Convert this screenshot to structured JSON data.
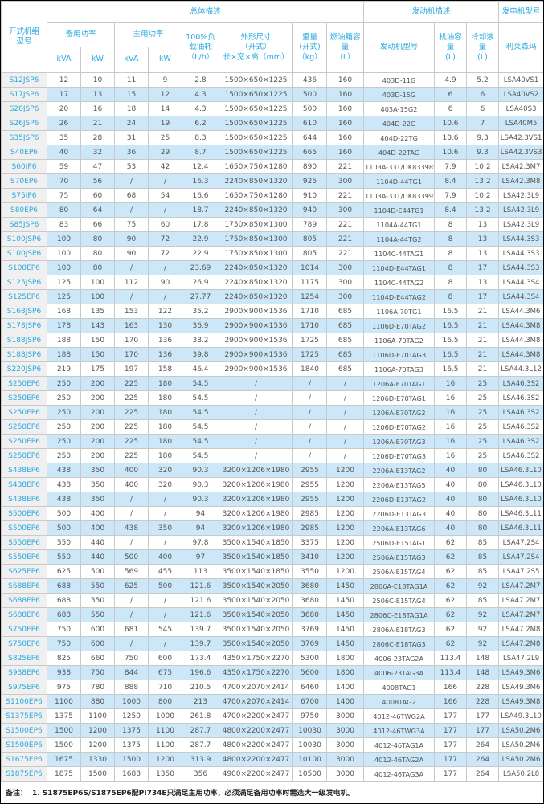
{
  "colors": {
    "accent_cyan": "#29a9e0",
    "stripe_blue": "#cce8f8",
    "model_column_gray": "#f0f0f0",
    "border_gray": "#c9c9c9"
  },
  "footnote": {
    "label": "备注：",
    "text": "1. S1875EP6S/S1875EP6配PI734E只满足主用功率，必须满足备用功率时需选大一级发电机。"
  },
  "table": {
    "header": {
      "model_col": "开式机组\n型号",
      "overall_group": "总体描述",
      "engine_group": "发动机描述",
      "generator_group": "发电机型号",
      "standby_power": "备用功率",
      "prime_power": "主用功率",
      "standby_kva": "kVA",
      "standby_kw": "kW",
      "prime_kva": "kVA",
      "prime_kw": "kW",
      "fuel_100": "100%负\n载油耗\n（L/h）",
      "dimensions": "外形尺寸\n（开式）\n长×宽×高（mm）",
      "weight": "重量\n(开式)\n（kg）",
      "fuel_tank": "燃油箱容\n量\n（L）",
      "engine_model": "发动机型号",
      "oil_capacity": "机油容量\n(L)",
      "coolant_capacity": "冷却液量\n(L)",
      "generator_brand": "利莱森玛"
    },
    "columns": [
      "开式机组型号",
      "备用功率 kVA",
      "备用功率 kW",
      "主用功率 kVA",
      "主用功率 kW",
      "100%负载油耗（L/h）",
      "外形尺寸（开式）长×宽×高（mm）",
      "重量(开式)（kg）",
      "燃油箱容量（L）",
      "发动机型号",
      "机油容量(L)",
      "冷却液量(L)",
      "利莱森玛"
    ],
    "rows": [
      [
        "S12JSP6",
        "12",
        "10",
        "11",
        "9",
        "2.8",
        "1500×650×1225",
        "436",
        "160",
        "403D-11G",
        "4.9",
        "5.2",
        "LSA40VS1"
      ],
      [
        "S17JSP6",
        "17",
        "13",
        "15",
        "12",
        "4.3",
        "1500×650×1225",
        "500",
        "160",
        "403D-15G",
        "6",
        "6",
        "LSA40VS2"
      ],
      [
        "S20JSP6",
        "20",
        "16",
        "18",
        "14",
        "4.3",
        "1500×650×1225",
        "500",
        "160",
        "403A-15G2",
        "6",
        "6",
        "LSA40S3"
      ],
      [
        "S26JSP6",
        "26",
        "21",
        "24",
        "19",
        "6.2",
        "1500×650×1225",
        "610",
        "160",
        "404D-22G",
        "10.6",
        "7",
        "LSA40M5"
      ],
      [
        "S35JSP6",
        "35",
        "28",
        "31",
        "25",
        "8.3",
        "1500×650×1225",
        "644",
        "160",
        "404D-22TG",
        "10.6",
        "9.3",
        "LSA42.3VS1"
      ],
      [
        "S40EP6",
        "40",
        "32",
        "36",
        "29",
        "8.7",
        "1500×650×1225",
        "665",
        "160",
        "404D-22TAG",
        "10.6",
        "9.3",
        "LSA42.3VS3"
      ],
      [
        "S60IP6",
        "59",
        "47",
        "53",
        "42",
        "12.4",
        "1650×750×1280",
        "890",
        "221",
        "1103A-33T/DK83398S",
        "7.9",
        "10.2",
        "LSA42.3M7"
      ],
      [
        "S70EP6",
        "70",
        "56",
        "/",
        "/",
        "16.3",
        "2240×850×1320",
        "925",
        "300",
        "1104D-44TG1",
        "8.4",
        "13.2",
        "LSA42.3M8"
      ],
      [
        "S75IP6",
        "75",
        "60",
        "68",
        "54",
        "16.6",
        "1650×750×1280",
        "910",
        "221",
        "1103A-33T/DK83399S",
        "7.9",
        "10.2",
        "LSA42.3L9"
      ],
      [
        "S80EP6",
        "80",
        "64",
        "/",
        "/",
        "18.7",
        "2240×850×1320",
        "940",
        "300",
        "1104D-E44TG1",
        "8.4",
        "13.2",
        "LSA42.3L9"
      ],
      [
        "S85JSP6",
        "83",
        "66",
        "75",
        "60",
        "17.8",
        "1750×850×1300",
        "789",
        "221",
        "1104A-44TG1",
        "8",
        "13",
        "LSA42.3L9"
      ],
      [
        "S100JSP6",
        "100",
        "80",
        "90",
        "72",
        "22.9",
        "1750×850×1300",
        "805",
        "221",
        "1104A-44TG2",
        "8",
        "13",
        "LSA44.3S3"
      ],
      [
        "S100JSP6",
        "100",
        "80",
        "90",
        "72",
        "22.9",
        "1750×850×1300",
        "805",
        "221",
        "1104C-44TAG1",
        "8",
        "13",
        "LSA44.3S3"
      ],
      [
        "S100EP6",
        "100",
        "80",
        "/",
        "/",
        "23.69",
        "2240×850×1320",
        "1014",
        "300",
        "1104D-E44TAG1",
        "8",
        "17",
        "LSA44.3S3"
      ],
      [
        "S125JSP6",
        "125",
        "100",
        "112",
        "90",
        "26.9",
        "2240×850×1320",
        "1175",
        "300",
        "1104C-44TAG2",
        "8",
        "13",
        "LSA44.3S4"
      ],
      [
        "S125EP6",
        "125",
        "100",
        "/",
        "/",
        "27.77",
        "2240×850×1320",
        "1254",
        "300",
        "1104D-E44TAG2",
        "8",
        "17",
        "LSA44.3S4"
      ],
      [
        "S168JSP6",
        "168",
        "135",
        "153",
        "122",
        "35.2",
        "2900×900×1536",
        "1710",
        "685",
        "1106A-70TG1",
        "16.5",
        "21",
        "LSA44.3M6"
      ],
      [
        "S178JSP6",
        "178",
        "143",
        "163",
        "130",
        "36.9",
        "2900×900×1536",
        "1710",
        "685",
        "1106D-E70TAG2",
        "16.5",
        "21",
        "LSA44.3M8"
      ],
      [
        "S188JSP6",
        "188",
        "150",
        "170",
        "136",
        "38.2",
        "2900×900×1536",
        "1725",
        "685",
        "1106A-70TAG2",
        "16.5",
        "21",
        "LSA44.3M8"
      ],
      [
        "S188JSP6",
        "188",
        "150",
        "170",
        "136",
        "39.8",
        "2900×900×1536",
        "1725",
        "685",
        "1106D-E70TAG3",
        "16.5",
        "21",
        "LSA44.3M8"
      ],
      [
        "S220JSP6",
        "219",
        "175",
        "197",
        "158",
        "46.4",
        "2900×900×1536",
        "1840",
        "685",
        "1106A-70TAG3",
        "16.5",
        "21",
        "LSA44.3L12"
      ],
      [
        "S250EP6",
        "250",
        "200",
        "225",
        "180",
        "54.5",
        "/",
        "/",
        "/",
        "1206A-E70TAG1",
        "16",
        "25",
        "LSA46.3S2"
      ],
      [
        "S250EP6",
        "250",
        "200",
        "225",
        "180",
        "54.5",
        "/",
        "/",
        "/",
        "1206D-E70TAG1",
        "16",
        "25",
        "LSA46.3S2"
      ],
      [
        "S250EP6",
        "250",
        "200",
        "225",
        "180",
        "54.5",
        "/",
        "/",
        "/",
        "1206A-E70TAG2",
        "16",
        "25",
        "LSA46.3S2"
      ],
      [
        "S250EP6",
        "250",
        "200",
        "225",
        "180",
        "54.5",
        "/",
        "/",
        "/",
        "1206D-E70TAG2",
        "16",
        "25",
        "LSA46.3S2"
      ],
      [
        "S250EP6",
        "250",
        "200",
        "225",
        "180",
        "54.5",
        "/",
        "/",
        "/",
        "1206A-E70TAG3",
        "16",
        "25",
        "LSA46.3S2"
      ],
      [
        "S250EP6",
        "250",
        "200",
        "225",
        "180",
        "54.5",
        "/",
        "/",
        "/",
        "1206D-E70TAG3",
        "16",
        "25",
        "LSA46.3S2"
      ],
      [
        "S438EP6",
        "438",
        "350",
        "400",
        "320",
        "90.3",
        "3200×1206×1980",
        "2955",
        "1200",
        "2206A-E13TAG2",
        "40",
        "80",
        "LSA46.3L10"
      ],
      [
        "S438EP6",
        "438",
        "350",
        "400",
        "320",
        "90.3",
        "3200×1206×1980",
        "2955",
        "1200",
        "2206A-E13TAG5",
        "40",
        "80",
        "LSA46.3L10"
      ],
      [
        "S438EP6",
        "438",
        "350",
        "/",
        "/",
        "90.3",
        "3200×1206×1980",
        "2955",
        "1200",
        "2206D-E13TAG2",
        "40",
        "80",
        "LSA46.3L10"
      ],
      [
        "S500EP6",
        "500",
        "400",
        "/",
        "/",
        "94",
        "3200×1206×1980",
        "2985",
        "1200",
        "2206D-E13TAG3",
        "40",
        "80",
        "LSA46.3L11"
      ],
      [
        "S500EP6",
        "500",
        "400",
        "438",
        "350",
        "94",
        "3200×1206×1980",
        "2985",
        "1200",
        "2206A-E13TAG6",
        "40",
        "80",
        "LSA46.3L11"
      ],
      [
        "S550EP6",
        "550",
        "440",
        "/",
        "/",
        "97.8",
        "3500×1540×1850",
        "3375",
        "1200",
        "2506D-E15TAG1",
        "62",
        "85",
        "LSA47.2S4"
      ],
      [
        "S550EP6",
        "550",
        "440",
        "500",
        "400",
        "97",
        "3500×1540×1850",
        "3410",
        "1200",
        "2506A-E15TAG3",
        "62",
        "85",
        "LSA47.2S4"
      ],
      [
        "S625EP6",
        "625",
        "500",
        "569",
        "455",
        "113",
        "3500×1540×1850",
        "3550",
        "1200",
        "2506A-E15TAG4",
        "62",
        "85",
        "LSA47.2S5"
      ],
      [
        "S688EP6",
        "688",
        "550",
        "625",
        "500",
        "121.6",
        "3500×1540×2050",
        "3680",
        "1450",
        "2806A-E18TAG1A",
        "62",
        "92",
        "LSA47.2M7"
      ],
      [
        "S688EP6",
        "688",
        "550",
        "/",
        "/",
        "121.6",
        "3500×1540×2050",
        "3680",
        "1450",
        "2506C-E15TAG4",
        "62",
        "85",
        "LSA47.2M7"
      ],
      [
        "S688EP6",
        "688",
        "550",
        "/",
        "/",
        "121.6",
        "3500×1540×2050",
        "3680",
        "1450",
        "2806C-E18TAG1A",
        "62",
        "92",
        "LSA47.2M7"
      ],
      [
        "S750EP6",
        "750",
        "600",
        "681",
        "545",
        "139.7",
        "3500×1540×2050",
        "3769",
        "1450",
        "2806A-E18TAG3",
        "62",
        "92",
        "LSA47.2M8"
      ],
      [
        "S750EP6",
        "750",
        "600",
        "/",
        "/",
        "139.7",
        "3500×1540×2050",
        "3769",
        "1450",
        "2806C-E18TAG3",
        "62",
        "92",
        "LSA47.2M8"
      ],
      [
        "S825EP6",
        "825",
        "660",
        "750",
        "600",
        "173.4",
        "4350×1750×2270",
        "5300",
        "1800",
        "4006-23TAG2A",
        "113.4",
        "148",
        "LSA47.2L9"
      ],
      [
        "S938EP6",
        "938",
        "750",
        "844",
        "675",
        "196.6",
        "4350×1750×2270",
        "5600",
        "1800",
        "4006-23TAG3A",
        "113.4",
        "148",
        "LSA49.3M6"
      ],
      [
        "S975EP6",
        "975",
        "780",
        "888",
        "710",
        "210.5",
        "4700×2070×2414",
        "6460",
        "1400",
        "4008TAG1",
        "166",
        "228",
        "LSA49.3M6"
      ],
      [
        "S1100EP6",
        "1100",
        "880",
        "1000",
        "800",
        "213",
        "4700×2070×2414",
        "6700",
        "1400",
        "4008TAG2",
        "166",
        "228",
        "LSA49.3M8"
      ],
      [
        "S1375EP6",
        "1375",
        "1100",
        "1250",
        "1000",
        "261.8",
        "4700×2200×2477",
        "9750",
        "3000",
        "4012-46TWG2A",
        "177",
        "177",
        "LSA49.3L10"
      ],
      [
        "S1500EP6",
        "1500",
        "1200",
        "1375",
        "1100",
        "287.7",
        "4800×2200×2477",
        "10030",
        "3000",
        "4012-46TWG3A",
        "177",
        "177",
        "LSA50.2M6"
      ],
      [
        "S1500EP6",
        "1500",
        "1200",
        "1375",
        "1100",
        "287.7",
        "4800×2200×2477",
        "10030",
        "3000",
        "4012-46TAG1A",
        "177",
        "264",
        "LSA50.2M6"
      ],
      [
        "S1675EP6",
        "1675",
        "1330",
        "1500",
        "1200",
        "313.9",
        "4800×2200×2477",
        "10100",
        "3000",
        "4012-46TAG2A",
        "177",
        "264",
        "LSA50.2M6"
      ],
      [
        "S1875EP6",
        "1875",
        "1500",
        "1688",
        "1350",
        "356",
        "4900×2200×2477",
        "10500",
        "3000",
        "4012-46TAG3A",
        "177",
        "264",
        "LSA50.2L8"
      ]
    ]
  }
}
